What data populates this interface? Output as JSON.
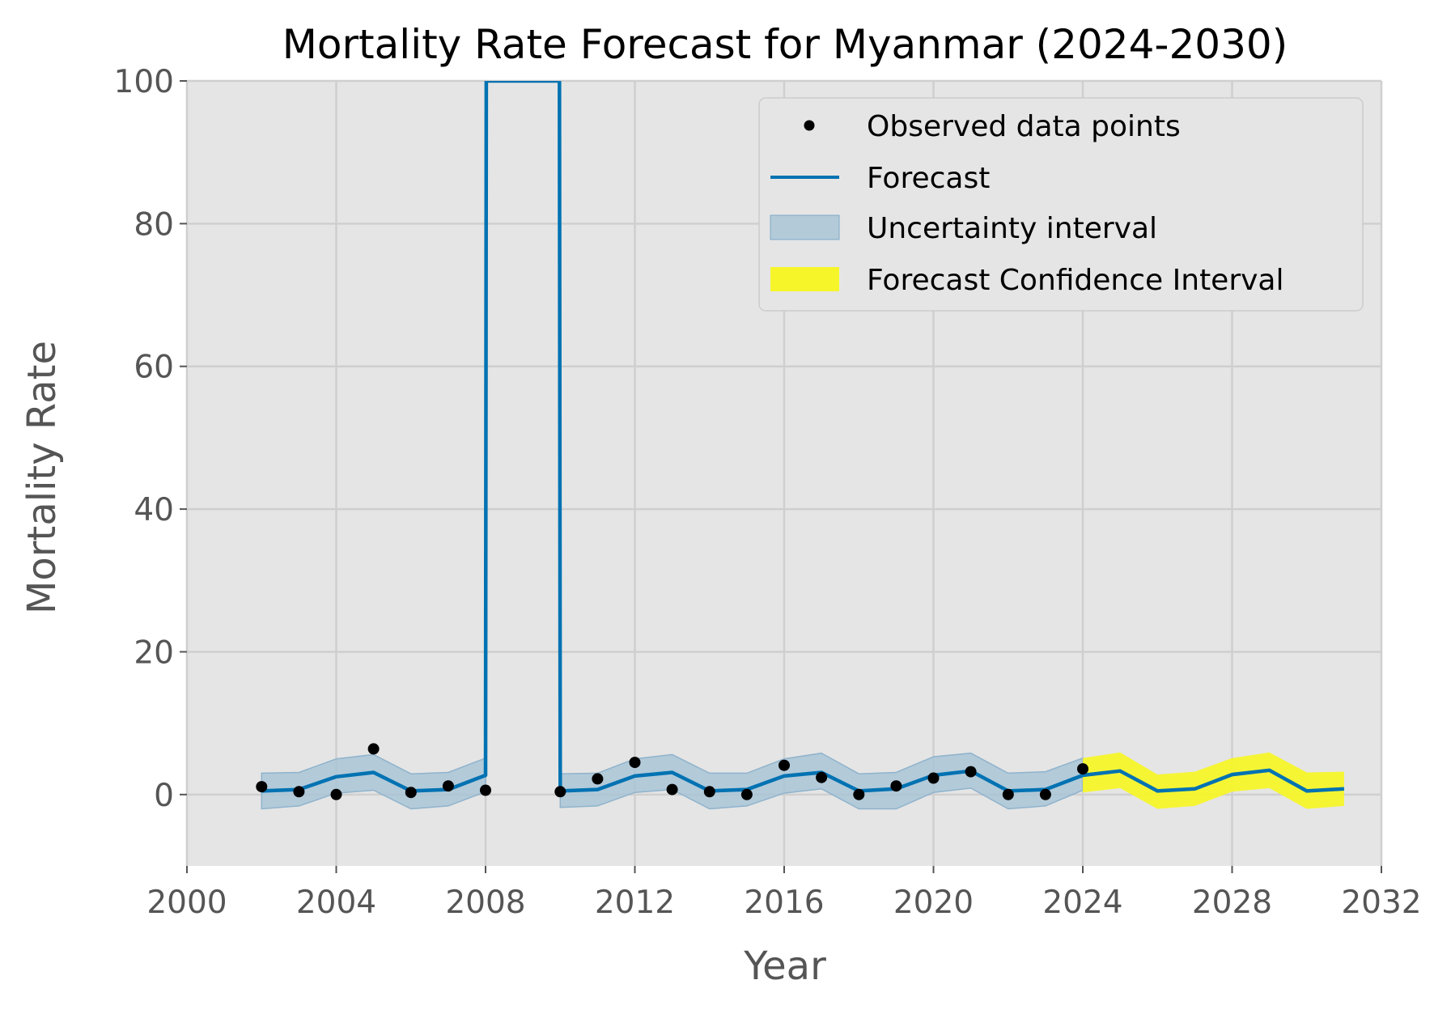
{
  "colors": {
    "background": "#ffffff",
    "plot_background": "#e5e5e5",
    "grid": "#cfcfcf",
    "forecast_line": "#0072b2",
    "uncertainty_fill": "#a6c3d6",
    "confidence_fill": "#f5f52a",
    "points": "#000000"
  },
  "chart_data": {
    "type": "line",
    "title": "Mortality Rate Forecast for Myanmar (2024-2030)",
    "xlabel": "Year",
    "ylabel": "Mortality Rate",
    "xlim": [
      2000,
      2032
    ],
    "ylim": [
      -10,
      100
    ],
    "x_ticks": [
      2000,
      2004,
      2008,
      2012,
      2016,
      2020,
      2024,
      2028,
      2032
    ],
    "y_ticks": [
      0,
      20,
      40,
      60,
      80,
      100
    ],
    "x_tick_labels": [
      "2000",
      "2004",
      "2008",
      "2012",
      "2016",
      "2020",
      "2024",
      "2028",
      "2032"
    ],
    "y_tick_labels": [
      "0",
      "20",
      "40",
      "60",
      "80",
      "100"
    ],
    "grid": true,
    "legend_position": "top-right",
    "legend": [
      "Observed data points",
      "Forecast",
      "Uncertainty interval",
      "Forecast Confidence Interval"
    ],
    "observed": {
      "name": "Observed data points",
      "x": [
        2002,
        2003,
        2004,
        2005,
        2006,
        2007,
        2008,
        2010,
        2011,
        2012,
        2013,
        2014,
        2015,
        2016,
        2017,
        2018,
        2019,
        2020,
        2021,
        2022,
        2023,
        2024
      ],
      "y": [
        1.1,
        0.4,
        0,
        6.4,
        0.3,
        1.2,
        0.6,
        0.4,
        2.2,
        4.5,
        0.7,
        0.4,
        0,
        4.1,
        2.4,
        0,
        1.2,
        2.3,
        3.2,
        0,
        0,
        3.6
      ]
    },
    "forecast": {
      "name": "Forecast",
      "x": [
        2002,
        2003,
        2004,
        2005,
        2006,
        2007,
        2008,
        2008.02,
        2009.98,
        2010,
        2011,
        2012,
        2013,
        2014,
        2015,
        2016,
        2017,
        2018,
        2019,
        2020,
        2021,
        2022,
        2023,
        2024,
        2025,
        2026,
        2027,
        2028,
        2029,
        2030,
        2031
      ],
      "y": [
        0.5,
        0.7,
        2.5,
        3.1,
        0.5,
        0.7,
        2.7,
        100,
        100,
        0.5,
        0.7,
        2.6,
        3.1,
        0.5,
        0.7,
        2.6,
        3.1,
        0.5,
        0.8,
        2.7,
        3.3,
        0.5,
        0.7,
        2.7,
        3.3,
        0.5,
        0.8,
        2.8,
        3.4,
        0.5,
        0.8
      ]
    },
    "uncertainty_interval": {
      "name": "Uncertainty interval",
      "segments": [
        {
          "x": [
            2002,
            2003,
            2004,
            2005,
            2006,
            2007,
            2008
          ],
          "lower": [
            -2.0,
            -1.6,
            0.2,
            0.6,
            -2.0,
            -1.6,
            0.4
          ],
          "upper": [
            3.0,
            3.1,
            5.0,
            5.6,
            2.9,
            3.1,
            5.1
          ]
        },
        {
          "x": [
            2010,
            2011,
            2012,
            2013,
            2014,
            2015,
            2016,
            2017,
            2018,
            2019,
            2020,
            2021,
            2022,
            2023,
            2024
          ],
          "lower": [
            -1.8,
            -1.6,
            0.3,
            0.7,
            -2.0,
            -1.6,
            0.2,
            0.8,
            -2.0,
            -2.0,
            0.3,
            0.9,
            -2.0,
            -1.6,
            0.6
          ],
          "upper": [
            2.9,
            3.0,
            5.0,
            5.6,
            3.0,
            3.0,
            5.0,
            5.8,
            2.9,
            3.1,
            5.3,
            5.8,
            3.0,
            3.2,
            5.1
          ]
        }
      ]
    },
    "forecast_confidence_interval": {
      "name": "Forecast Confidence Interval",
      "x": [
        2024,
        2025,
        2026,
        2027,
        2028,
        2029,
        2030,
        2031
      ],
      "lower": [
        0.3,
        0.9,
        -2.0,
        -1.6,
        0.4,
        0.9,
        -2.0,
        -1.6
      ],
      "upper": [
        5.1,
        5.9,
        2.8,
        3.2,
        5.1,
        5.9,
        3.1,
        3.2
      ]
    }
  }
}
